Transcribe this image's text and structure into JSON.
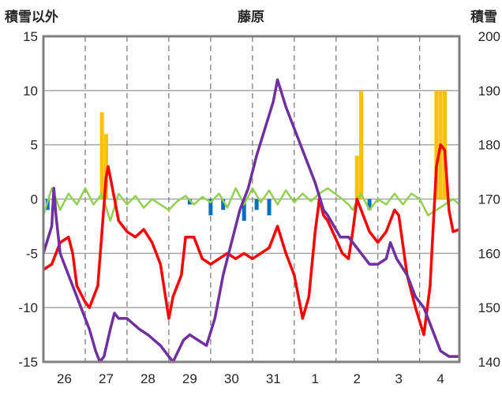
{
  "chart_data": {
    "type": "line",
    "title": "藤原",
    "ylabel_left": "積雪以外",
    "ylabel_right": "積雪",
    "ylim_left": [
      -15,
      15
    ],
    "yticks_left": [
      "15",
      "10",
      "5",
      "0",
      "-5",
      "-10",
      "-15"
    ],
    "ylim_right": [
      140,
      200
    ],
    "yticks_right": [
      "200",
      "190",
      "180",
      "170",
      "160",
      "150",
      "140"
    ],
    "x_day_labels": [
      "26",
      "27",
      "28",
      "29",
      "30",
      "31",
      "1",
      "2",
      "3",
      "4"
    ],
    "grid": true,
    "legend": "none",
    "colors": {
      "snow_depth": "#7030a0",
      "temperature": "#ff0000",
      "wind": "#92d050",
      "snowfall_bars": "#ffc000",
      "negative_bars": "#0070c0",
      "frame": "#7f7f7f"
    },
    "series": [
      {
        "axis": "right",
        "color_key": "snow_depth",
        "points": [
          [
            25.5,
            160
          ],
          [
            25.7,
            165
          ],
          [
            25.75,
            172
          ],
          [
            25.8,
            167
          ],
          [
            25.9,
            160
          ],
          [
            26.0,
            158
          ],
          [
            26.2,
            154
          ],
          [
            26.4,
            150
          ],
          [
            26.6,
            146
          ],
          [
            26.75,
            142
          ],
          [
            26.85,
            140
          ],
          [
            26.95,
            141
          ],
          [
            27.1,
            146
          ],
          [
            27.2,
            149
          ],
          [
            27.3,
            148
          ],
          [
            27.5,
            148
          ],
          [
            27.8,
            146
          ],
          [
            28.0,
            145
          ],
          [
            28.3,
            143
          ],
          [
            28.6,
            140
          ],
          [
            28.85,
            144
          ],
          [
            29.0,
            145
          ],
          [
            29.2,
            144
          ],
          [
            29.4,
            143
          ],
          [
            29.6,
            148
          ],
          [
            29.8,
            156
          ],
          [
            30.0,
            162
          ],
          [
            30.2,
            168
          ],
          [
            30.4,
            172
          ],
          [
            30.6,
            178
          ],
          [
            30.8,
            183
          ],
          [
            31.0,
            188
          ],
          [
            31.1,
            192
          ],
          [
            31.3,
            187
          ],
          [
            31.6,
            181
          ],
          [
            31.8,
            177
          ],
          [
            32.0,
            173
          ],
          [
            32.2,
            168
          ],
          [
            32.3,
            167
          ],
          [
            32.6,
            163
          ],
          [
            32.8,
            163
          ],
          [
            32.9,
            162
          ],
          [
            33.1,
            160
          ],
          [
            33.3,
            158
          ],
          [
            33.5,
            158
          ],
          [
            33.7,
            159
          ],
          [
            33.8,
            162
          ],
          [
            33.95,
            159
          ],
          [
            34.2,
            156
          ],
          [
            34.4,
            152
          ],
          [
            34.6,
            150
          ],
          [
            34.8,
            146
          ],
          [
            35.0,
            142
          ],
          [
            35.2,
            141
          ],
          [
            35.45,
            141
          ]
        ]
      },
      {
        "axis": "left",
        "color_key": "temperature",
        "points": [
          [
            25.5,
            -6.5
          ],
          [
            25.7,
            -6
          ],
          [
            25.9,
            -4
          ],
          [
            26.1,
            -3.5
          ],
          [
            26.2,
            -5
          ],
          [
            26.3,
            -8
          ],
          [
            26.5,
            -9.5
          ],
          [
            26.6,
            -10
          ],
          [
            26.8,
            -8
          ],
          [
            26.9,
            -3
          ],
          [
            27.0,
            2
          ],
          [
            27.05,
            3
          ],
          [
            27.15,
            1
          ],
          [
            27.3,
            -2
          ],
          [
            27.5,
            -3
          ],
          [
            27.7,
            -3.5
          ],
          [
            27.9,
            -2.8
          ],
          [
            28.1,
            -4
          ],
          [
            28.3,
            -6
          ],
          [
            28.5,
            -11
          ],
          [
            28.6,
            -9
          ],
          [
            28.8,
            -7
          ],
          [
            28.9,
            -3.5
          ],
          [
            29.1,
            -3.5
          ],
          [
            29.3,
            -5.5
          ],
          [
            29.5,
            -6
          ],
          [
            29.7,
            -5.5
          ],
          [
            29.9,
            -5
          ],
          [
            30.1,
            -5.5
          ],
          [
            30.3,
            -5
          ],
          [
            30.5,
            -5.5
          ],
          [
            30.7,
            -5
          ],
          [
            30.9,
            -4.5
          ],
          [
            31.0,
            -3.5
          ],
          [
            31.1,
            -2.5
          ],
          [
            31.3,
            -5
          ],
          [
            31.5,
            -7
          ],
          [
            31.7,
            -11
          ],
          [
            31.85,
            -9
          ],
          [
            32.0,
            -3
          ],
          [
            32.1,
            0
          ],
          [
            32.2,
            -1.5
          ],
          [
            32.3,
            -2
          ],
          [
            32.65,
            -5
          ],
          [
            32.8,
            -5.5
          ],
          [
            32.9,
            -3
          ],
          [
            33.0,
            0
          ],
          [
            33.1,
            -1
          ],
          [
            33.3,
            -3
          ],
          [
            33.5,
            -4
          ],
          [
            33.7,
            -3
          ],
          [
            33.9,
            -1
          ],
          [
            34.0,
            -1.5
          ],
          [
            34.2,
            -7
          ],
          [
            34.4,
            -10
          ],
          [
            34.6,
            -12.5
          ],
          [
            34.75,
            -8
          ],
          [
            34.9,
            3
          ],
          [
            35.0,
            5
          ],
          [
            35.1,
            4.5
          ],
          [
            35.2,
            -1
          ],
          [
            35.3,
            -3
          ],
          [
            35.45,
            -2.8
          ]
        ]
      },
      {
        "axis": "left",
        "color_key": "wind",
        "points": [
          [
            25.5,
            -1.5
          ],
          [
            25.7,
            1
          ],
          [
            25.9,
            -1
          ],
          [
            26.1,
            0.5
          ],
          [
            26.3,
            -0.5
          ],
          [
            26.5,
            1
          ],
          [
            26.7,
            -0.5
          ],
          [
            26.9,
            0.5
          ],
          [
            27.1,
            -2
          ],
          [
            27.3,
            0.5
          ],
          [
            27.5,
            -0.5
          ],
          [
            27.7,
            0.3
          ],
          [
            27.9,
            -0.8
          ],
          [
            28.1,
            0
          ],
          [
            28.3,
            -0.5
          ],
          [
            28.5,
            -1
          ],
          [
            28.7,
            -0.2
          ],
          [
            28.9,
            0.3
          ],
          [
            29.1,
            -0.5
          ],
          [
            29.3,
            0.2
          ],
          [
            29.5,
            -0.3
          ],
          [
            29.7,
            0.5
          ],
          [
            29.9,
            -0.8
          ],
          [
            30.1,
            1
          ],
          [
            30.3,
            -0.5
          ],
          [
            30.5,
            1
          ],
          [
            30.7,
            -0.3
          ],
          [
            30.9,
            0.8
          ],
          [
            31.1,
            -0.5
          ],
          [
            31.3,
            0.8
          ],
          [
            31.5,
            -0.3
          ],
          [
            31.7,
            0.5
          ],
          [
            31.9,
            -0.2
          ],
          [
            32.1,
            0.5
          ],
          [
            32.3,
            1
          ],
          [
            32.65,
            0
          ],
          [
            32.8,
            -0.5
          ],
          [
            32.9,
            -1
          ],
          [
            33.1,
            0.5
          ],
          [
            33.3,
            -1
          ],
          [
            33.5,
            0
          ],
          [
            33.7,
            -0.5
          ],
          [
            33.9,
            0.5
          ],
          [
            34.1,
            -0.5
          ],
          [
            34.3,
            0.5
          ],
          [
            34.5,
            0
          ],
          [
            34.7,
            -1.5
          ],
          [
            34.9,
            -1
          ],
          [
            35.1,
            -0.5
          ],
          [
            35.3,
            0
          ],
          [
            35.45,
            -0.5
          ]
        ]
      }
    ],
    "bars_snowfall": [
      [
        26.9,
        8
      ],
      [
        27.0,
        6
      ],
      [
        33.0,
        4
      ],
      [
        33.1,
        10
      ],
      [
        34.9,
        10
      ],
      [
        35.0,
        10
      ],
      [
        35.1,
        10
      ]
    ],
    "bars_negative": [
      [
        25.6,
        -1
      ],
      [
        29.0,
        -0.5
      ],
      [
        29.5,
        -1.5
      ],
      [
        29.8,
        -1
      ],
      [
        30.3,
        -2
      ],
      [
        30.6,
        -1
      ],
      [
        30.9,
        -1.5
      ],
      [
        33.3,
        -1
      ]
    ]
  }
}
